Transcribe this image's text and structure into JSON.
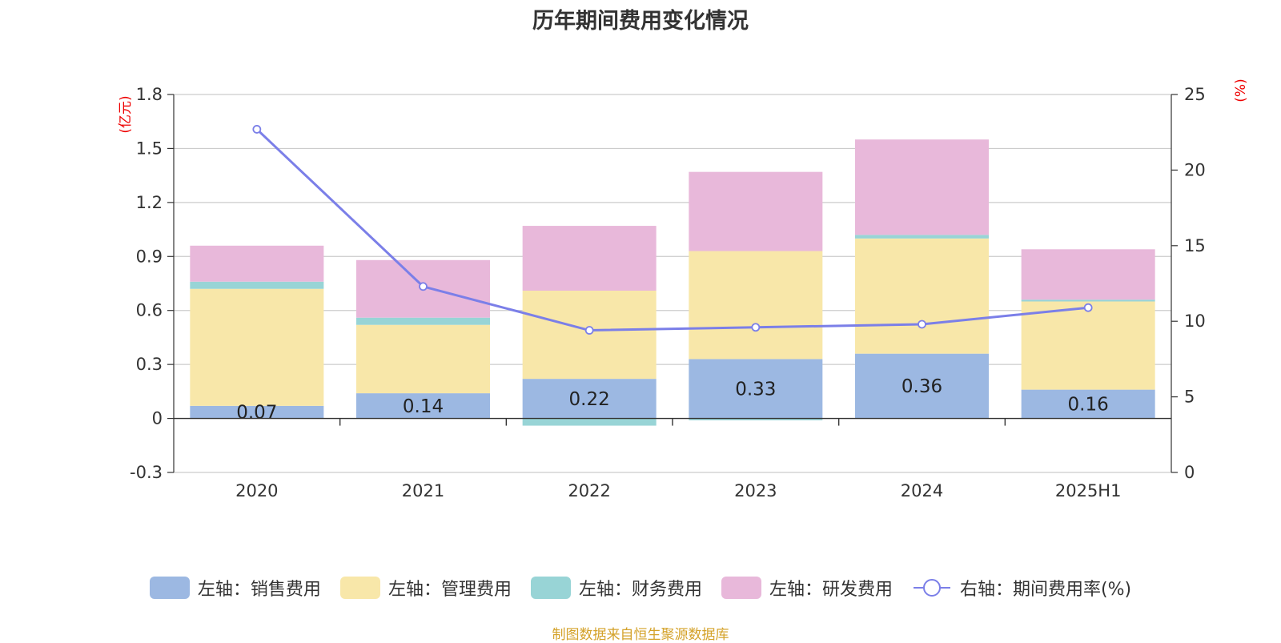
{
  "chart_data": {
    "type": "bar",
    "title": "历年期间费用变化情况",
    "categories": [
      "2020",
      "2021",
      "2022",
      "2023",
      "2024",
      "2025H1"
    ],
    "left_axis": {
      "unit": "(亿元)",
      "range": [
        -0.3,
        1.8
      ],
      "ticks": [
        "1.8",
        "1.5",
        "1.2",
        "0.9",
        "0.6",
        "0.3",
        "0",
        "-0.3"
      ]
    },
    "right_axis": {
      "unit": "(%)",
      "range": [
        0,
        25
      ],
      "ticks": [
        "25",
        "20",
        "15",
        "10",
        "5",
        "0"
      ]
    },
    "series": [
      {
        "name": "左轴：销售费用",
        "color": "#9cb8e2",
        "values": [
          0.07,
          0.14,
          0.22,
          0.33,
          0.36,
          0.16
        ],
        "labels": [
          "0.07",
          "0.14",
          "0.22",
          "0.33",
          "0.36",
          "0.16"
        ]
      },
      {
        "name": "左轴：管理费用",
        "color": "#f8e7a9",
        "values": [
          0.65,
          0.38,
          0.49,
          0.6,
          0.64,
          0.49
        ]
      },
      {
        "name": "左轴：财务费用",
        "color": "#98d4d6",
        "values": [
          0.04,
          0.04,
          -0.04,
          -0.01,
          0.02,
          0.01
        ]
      },
      {
        "name": "左轴：研发费用",
        "color": "#e8b8da",
        "values": [
          0.2,
          0.32,
          0.36,
          0.44,
          0.53,
          0.28
        ]
      },
      {
        "name": "右轴：期间费用率(%)",
        "color": "#7b7fe8",
        "type": "line",
        "axis": "right",
        "values": [
          22.7,
          12.3,
          9.4,
          9.6,
          9.8,
          10.9
        ]
      }
    ],
    "grid": true,
    "legend": "bottom"
  },
  "source_note": "制图数据来自恒生聚源数据库"
}
